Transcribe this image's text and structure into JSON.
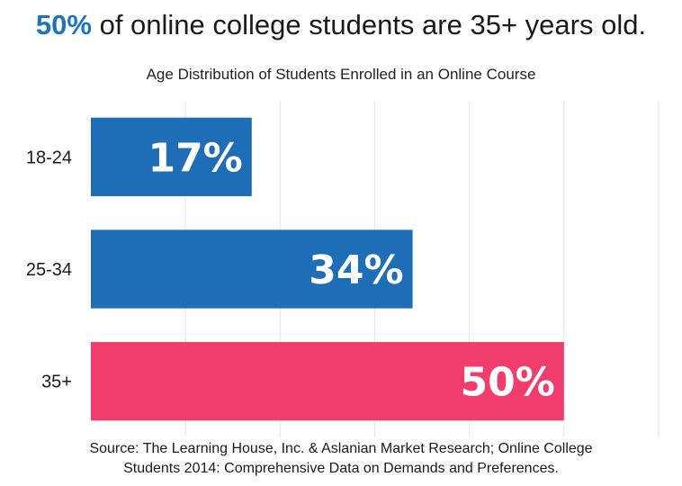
{
  "headline": {
    "highlight": "50%",
    "rest": " of online college students are 35+ years old."
  },
  "source": {
    "line1": "Source: The Learning House, Inc. & Aslanian Market Research; Online College",
    "line2": "Students 2014: Comprehensive Data on Demands and Preferences."
  },
  "colors": {
    "highlight": "#1e73be",
    "blue": "#1e6db7",
    "pink": "#f03d6b",
    "grid": "#e6e6e6"
  },
  "chart_data": {
    "type": "bar",
    "orientation": "horizontal",
    "title": "Age Distribution of Students Enrolled in an Online Course",
    "categories": [
      "18-24",
      "25-34",
      "35+"
    ],
    "values": [
      17,
      34,
      50
    ],
    "data_labels": [
      "17%",
      "34%",
      "50%"
    ],
    "bar_colors": [
      "#1e6db7",
      "#1e6db7",
      "#f03d6b"
    ],
    "xlim": [
      0,
      60
    ],
    "grid": true,
    "legend": "none"
  }
}
